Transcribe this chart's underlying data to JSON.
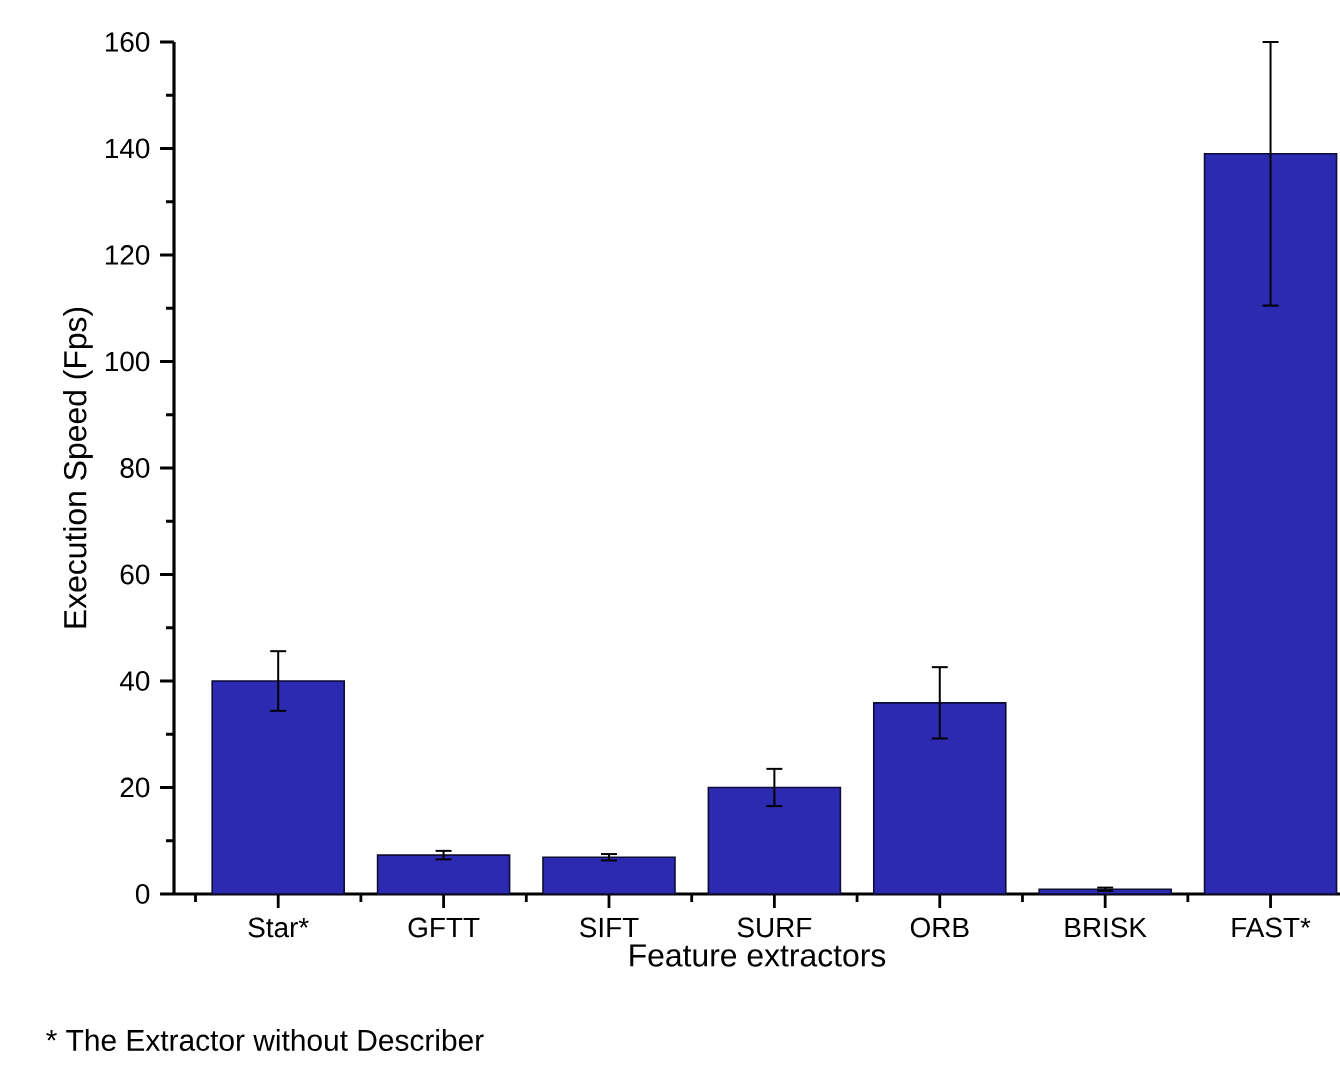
{
  "chart_data": {
    "type": "bar",
    "xlabel": "Feature extractors",
    "ylabel": "Execution Speed (Fps)",
    "categories": [
      "Star*",
      "GFTT",
      "SIFT",
      "SURF",
      "ORB",
      "BRISK",
      "FAST*"
    ],
    "values": [
      40,
      7.3,
      6.9,
      20,
      35.9,
      0.9,
      139
    ],
    "errors": [
      5.6,
      0.8,
      0.6,
      3.5,
      6.7,
      0.3,
      [
        110.5,
        160
      ]
    ],
    "color": "#2b2ab0",
    "ylim": [
      0,
      160
    ],
    "yticks": [
      0,
      20,
      40,
      60,
      80,
      100,
      120,
      140,
      160
    ],
    "annotations": [
      "* The Extractor without Describer"
    ]
  }
}
